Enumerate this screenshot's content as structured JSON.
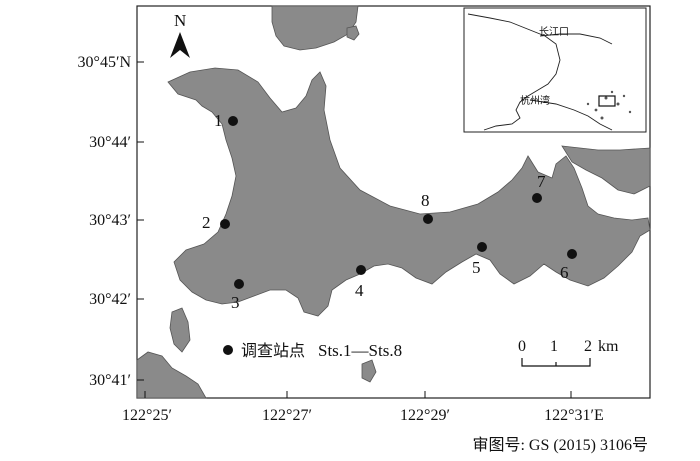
{
  "map": {
    "north_label": "N",
    "lat_labels": [
      "30°45′N",
      "30°44′",
      "30°43′",
      "30°42′",
      "30°41′"
    ],
    "lon_labels": [
      "122°25′",
      "122°27′",
      "122°29′",
      "122°31′E"
    ],
    "stations": [
      "1",
      "2",
      "3",
      "4",
      "5",
      "6",
      "7",
      "8"
    ],
    "legend": {
      "label_cn": "调查站点",
      "label_range": "Sts.1—Sts.8"
    },
    "scale_bar": {
      "ticks": [
        "0",
        "1",
        "2"
      ],
      "unit": "km"
    },
    "inset": {
      "labels": [
        "长江口",
        "杭州湾"
      ]
    },
    "approval_number": "审图号: GS (2015) 3106号",
    "colors": {
      "land": "#8a8a8a",
      "sea": "#ffffff",
      "station": "#111111"
    }
  }
}
